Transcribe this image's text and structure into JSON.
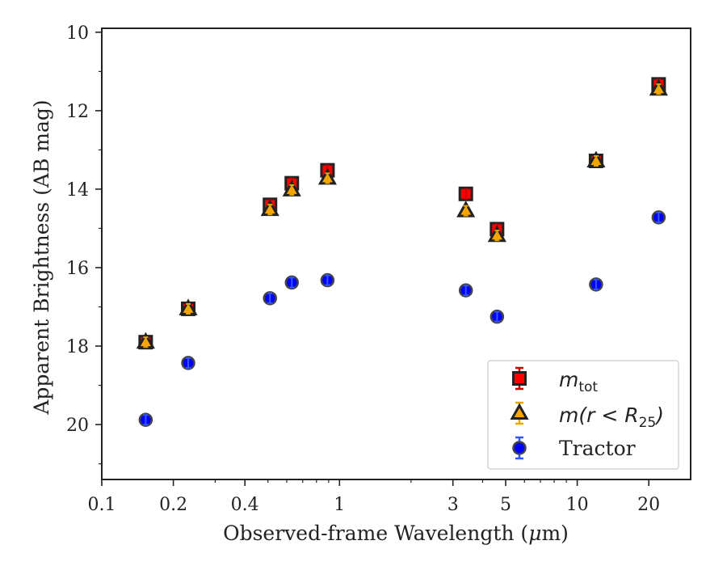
{
  "chart_data": {
    "type": "scatter",
    "xlabel_main": "Observed-frame Wavelength (",
    "xlabel_mu": "μ",
    "xlabel_tail": "m)",
    "ylabel": "Apparent Brightness (AB mag)",
    "x_scale": "log",
    "xlim": [
      0.1,
      30
    ],
    "ylim": [
      21.4,
      9.9
    ],
    "y_inverted": true,
    "x_ticks": [
      0.1,
      0.2,
      0.4,
      1,
      3,
      5,
      10,
      20
    ],
    "x_tick_labels": [
      "0.1",
      "0.2",
      "0.4",
      "1",
      "3",
      "5",
      "10",
      "20"
    ],
    "y_ticks": [
      10,
      12,
      14,
      16,
      18,
      20
    ],
    "y_tick_labels": [
      "10",
      "12",
      "14",
      "16",
      "18",
      "20"
    ],
    "grid": false,
    "legend_position": "lower-right",
    "series": [
      {
        "name": "m_tot",
        "marker": "square",
        "color": "#ff0000",
        "edge": "#222222",
        "error_color": "#cc0000",
        "x": [
          0.153,
          0.231,
          0.51,
          0.63,
          0.89,
          3.4,
          4.6,
          12.0,
          22.0
        ],
        "y": [
          17.9,
          17.05,
          14.4,
          13.85,
          13.52,
          14.12,
          15.02,
          13.28,
          11.33
        ]
      },
      {
        "name": "m(r < R25)",
        "marker": "triangle",
        "color": "#ffa500",
        "edge": "#222222",
        "error_color": "#e6a800",
        "x": [
          0.153,
          0.231,
          0.51,
          0.63,
          0.89,
          3.4,
          4.6,
          12.0,
          22.0
        ],
        "y": [
          17.9,
          17.05,
          14.52,
          14.02,
          13.72,
          14.55,
          15.18,
          13.28,
          11.45
        ]
      },
      {
        "name": "Tractor",
        "marker": "circle",
        "color": "#0000ff",
        "edge": "#444444",
        "error_color": "#3355ff",
        "x": [
          0.153,
          0.231,
          0.51,
          0.63,
          0.89,
          3.4,
          4.6,
          12.0,
          22.0
        ],
        "y": [
          19.88,
          18.43,
          16.78,
          16.38,
          16.32,
          16.58,
          17.25,
          16.43,
          14.72
        ]
      }
    ]
  },
  "legend": {
    "items": [
      {
        "base": "m",
        "sub": "tot",
        "paren": ""
      },
      {
        "base": "m",
        "sub": "",
        "paren": "(r < R",
        "paren_sub": "25",
        "paren_close": ")"
      },
      {
        "label": "Tractor"
      }
    ]
  }
}
